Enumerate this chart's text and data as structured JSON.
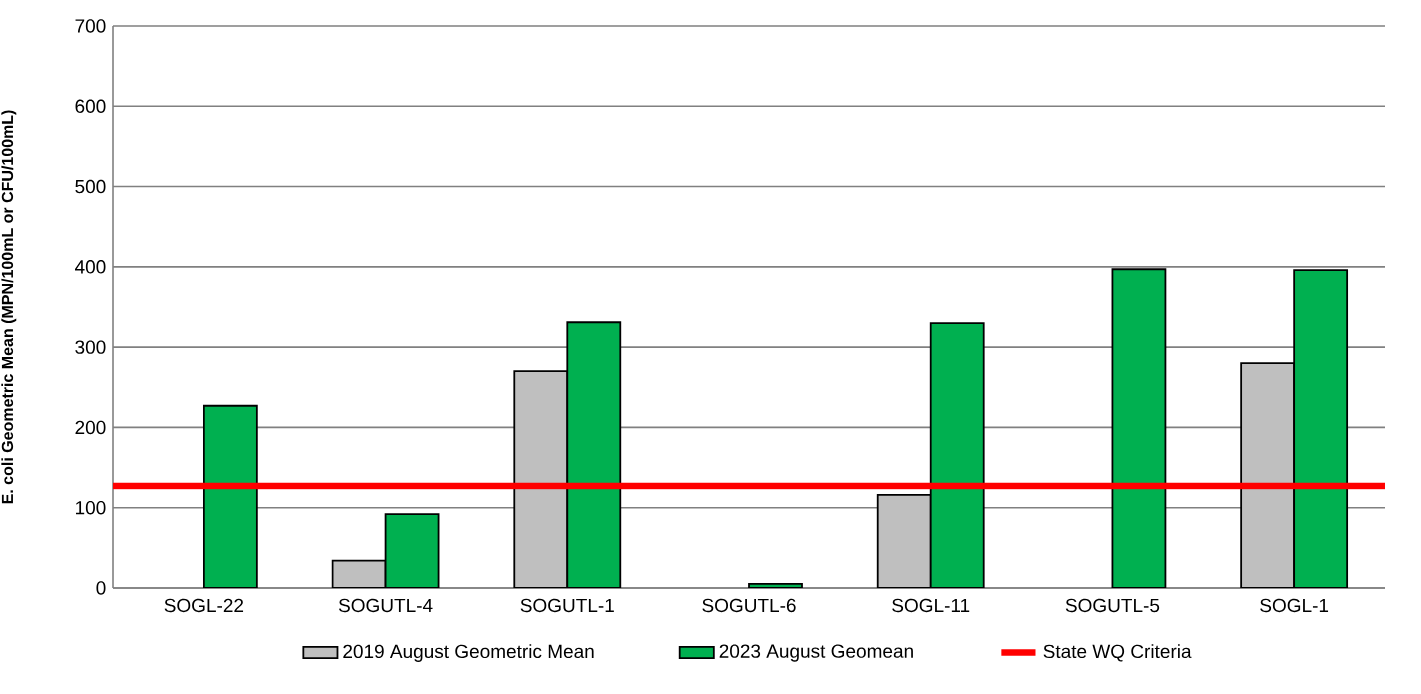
{
  "chart_data": {
    "type": "bar",
    "ylabel": "E. coli Geometric Mean (MPN/100mL or CFU/100mL)",
    "categories": [
      "SOGL-22",
      "SOGUTL-4",
      "SOGUTL-1",
      "SOGUTL-6",
      "SOGL-11",
      "SOGUTL-5",
      "SOGL-1"
    ],
    "series": [
      {
        "name": "2019 August Geometric Mean",
        "color": "#bfbfbf",
        "values": [
          null,
          34,
          270,
          null,
          116,
          null,
          280
        ]
      },
      {
        "name": "2023 August Geomean",
        "color": "#00b050",
        "values": [
          227,
          92,
          331,
          5,
          330,
          397,
          396
        ]
      }
    ],
    "ref_lines": [
      {
        "axis": "y",
        "value": 127,
        "label": "State WQ Criteria",
        "color": "#ff0000"
      }
    ],
    "ylim": [
      0,
      700
    ],
    "yticks": [
      0,
      100,
      200,
      300,
      400,
      500,
      600,
      700
    ],
    "grid": "y",
    "legend": "bottom"
  }
}
